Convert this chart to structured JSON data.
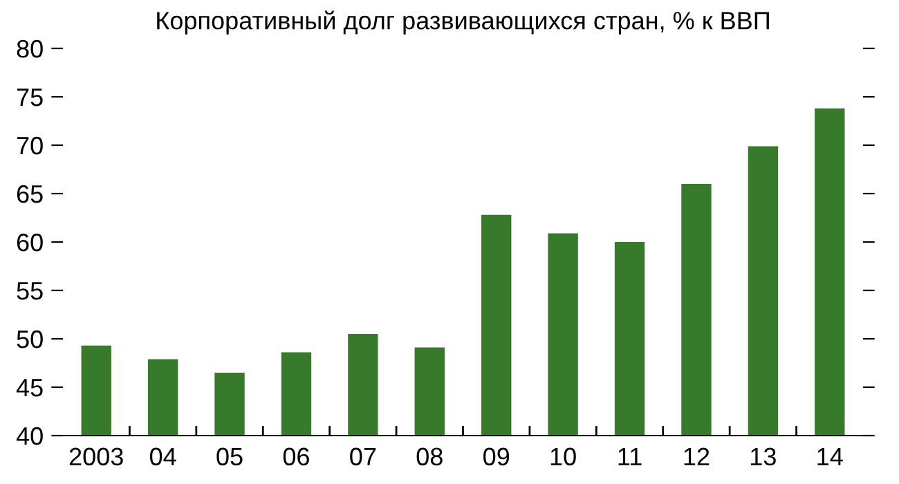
{
  "chart_data": {
    "type": "bar",
    "title": "Корпоративный долг развивающихся стран, % к ВВП",
    "categories": [
      "2003",
      "04",
      "05",
      "06",
      "07",
      "08",
      "09",
      "10",
      "11",
      "12",
      "13",
      "14"
    ],
    "values": [
      49.3,
      47.9,
      46.5,
      48.6,
      50.5,
      49.1,
      62.8,
      60.9,
      60.0,
      66.0,
      69.9,
      73.8
    ],
    "color": "#377a2c",
    "ylim": [
      40,
      80
    ],
    "yticks": [
      40,
      45,
      50,
      55,
      60,
      65,
      70,
      75,
      80
    ],
    "grid": false
  }
}
